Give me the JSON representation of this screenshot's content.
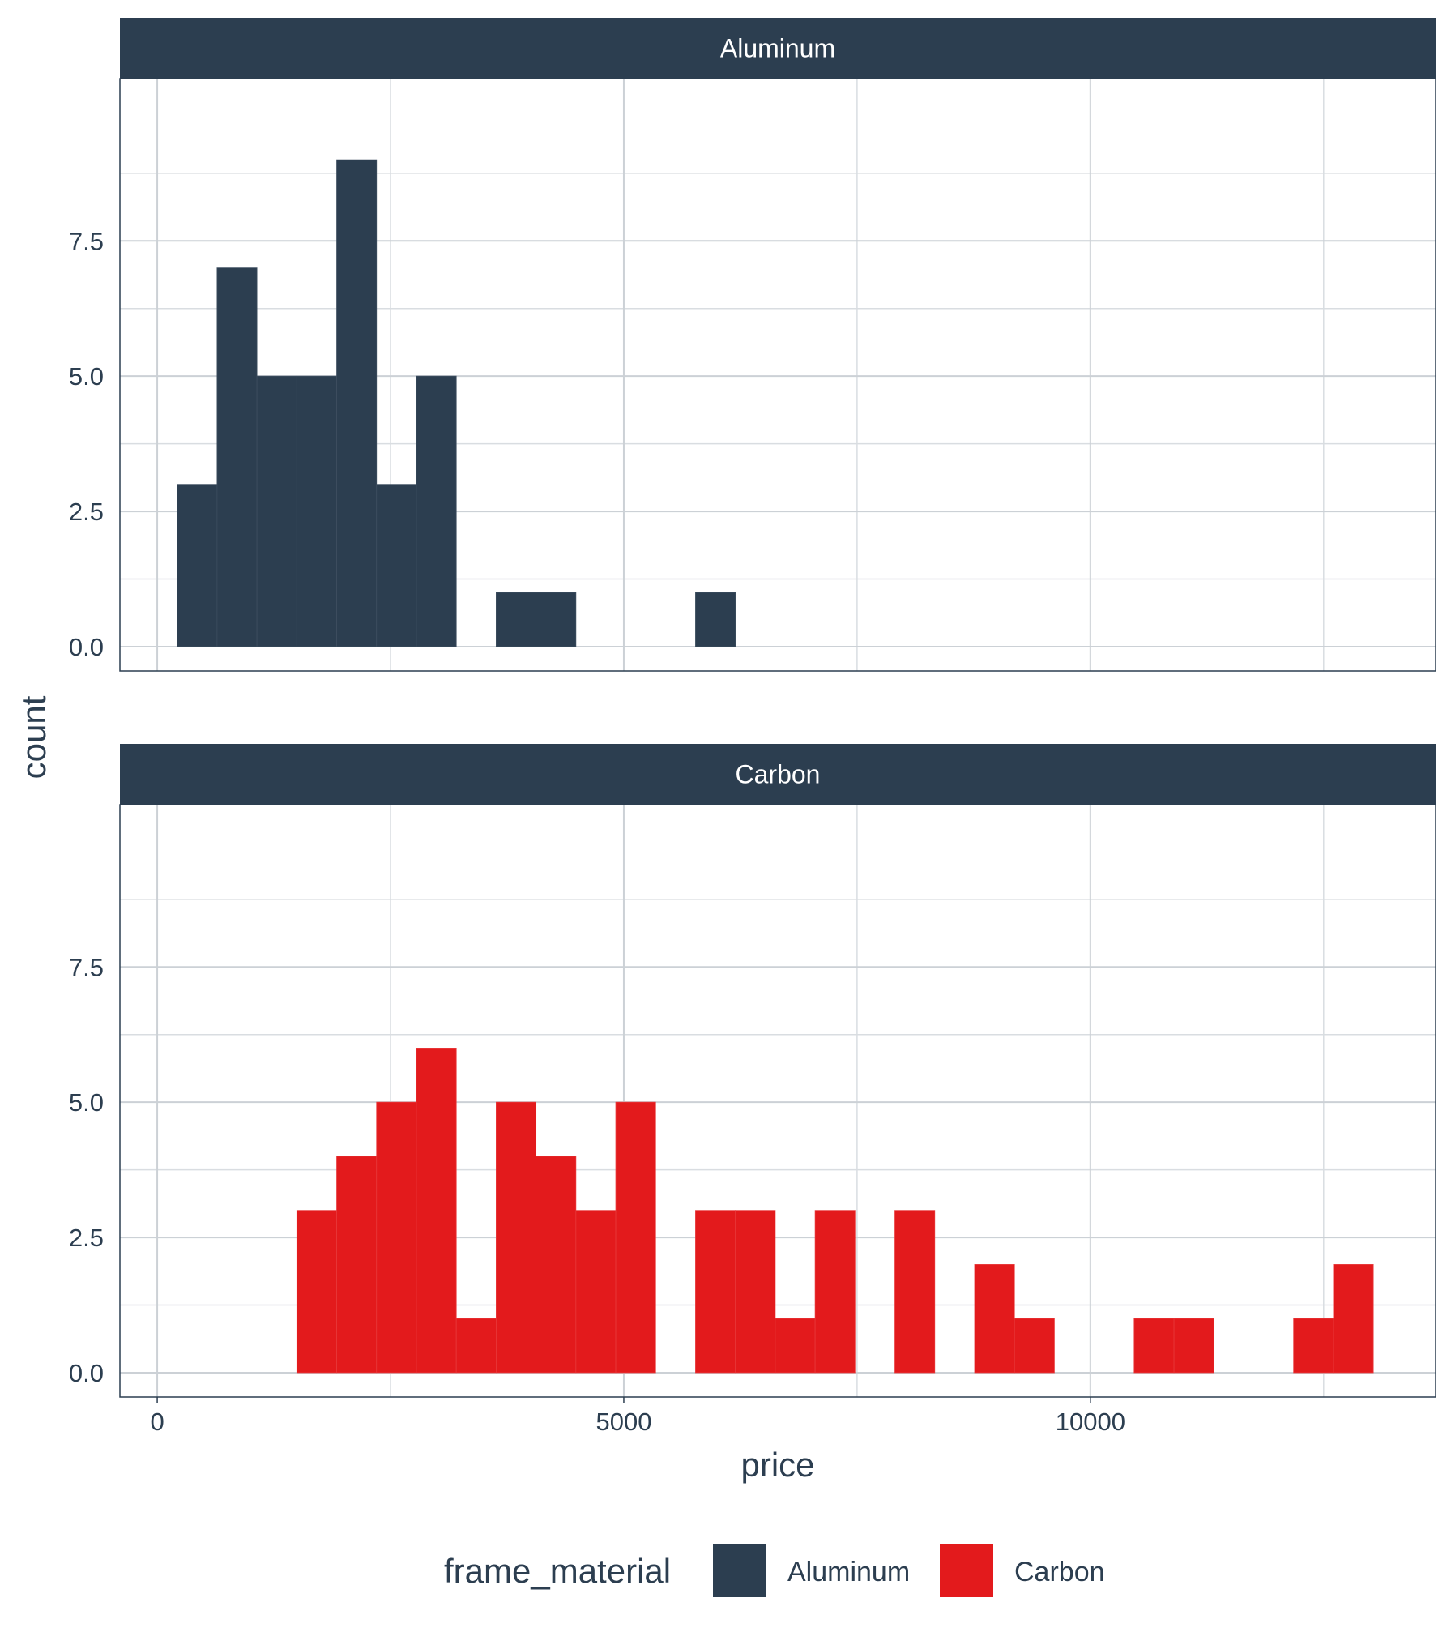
{
  "chart_data": {
    "type": "bar",
    "subtype": "faceted histogram",
    "xlabel": "price",
    "ylabel": "count",
    "xlim": [
      -400,
      13700
    ],
    "x_ticks": [
      0,
      5000,
      10000
    ],
    "x_tick_labels": [
      "0",
      "5000",
      "10000"
    ],
    "ylim": [
      -0.45,
      10.5
    ],
    "y_ticks": [
      0,
      2.5,
      5,
      7.5
    ],
    "y_tick_labels": [
      "0.0",
      "2.5",
      "5.0",
      "7.5"
    ],
    "bin_width": 427.3,
    "grid": true,
    "legend": {
      "title": "frame_material",
      "position": "bottom",
      "entries": [
        {
          "label": "Aluminum",
          "color": "#2C3E50"
        },
        {
          "label": "Carbon",
          "color": "#E31A1C"
        }
      ]
    },
    "facets": [
      {
        "label": "Aluminum",
        "color": "#2C3E50",
        "bins": [
          {
            "x_start": 213.65,
            "x_end": 640.95,
            "count": 3
          },
          {
            "x_start": 640.95,
            "x_end": 1068.25,
            "count": 7
          },
          {
            "x_start": 1068.25,
            "x_end": 1495.55,
            "count": 5
          },
          {
            "x_start": 1495.55,
            "x_end": 1922.85,
            "count": 5
          },
          {
            "x_start": 1922.85,
            "x_end": 2350.15,
            "count": 9
          },
          {
            "x_start": 2350.15,
            "x_end": 2777.45,
            "count": 3
          },
          {
            "x_start": 2777.45,
            "x_end": 3204.75,
            "count": 5
          },
          {
            "x_start": 3632.05,
            "x_end": 4059.35,
            "count": 1
          },
          {
            "x_start": 4059.35,
            "x_end": 4486.65,
            "count": 1
          },
          {
            "x_start": 5768.55,
            "x_end": 6195.85,
            "count": 1
          }
        ]
      },
      {
        "label": "Carbon",
        "color": "#E31A1C",
        "bins": [
          {
            "x_start": 1495.55,
            "x_end": 1922.85,
            "count": 3
          },
          {
            "x_start": 1922.85,
            "x_end": 2350.15,
            "count": 4
          },
          {
            "x_start": 2350.15,
            "x_end": 2777.45,
            "count": 5
          },
          {
            "x_start": 2777.45,
            "x_end": 3204.75,
            "count": 6
          },
          {
            "x_start": 3204.75,
            "x_end": 3632.05,
            "count": 1
          },
          {
            "x_start": 3632.05,
            "x_end": 4059.35,
            "count": 5
          },
          {
            "x_start": 4059.35,
            "x_end": 4486.65,
            "count": 4
          },
          {
            "x_start": 4486.65,
            "x_end": 4913.95,
            "count": 3
          },
          {
            "x_start": 4913.95,
            "x_end": 5341.25,
            "count": 5
          },
          {
            "x_start": 5768.55,
            "x_end": 6195.85,
            "count": 3
          },
          {
            "x_start": 6195.85,
            "x_end": 6623.15,
            "count": 3
          },
          {
            "x_start": 6623.15,
            "x_end": 7050.45,
            "count": 1
          },
          {
            "x_start": 7050.45,
            "x_end": 7477.75,
            "count": 3
          },
          {
            "x_start": 7905.05,
            "x_end": 8332.35,
            "count": 3
          },
          {
            "x_start": 8759.65,
            "x_end": 9186.95,
            "count": 2
          },
          {
            "x_start": 9186.95,
            "x_end": 9614.25,
            "count": 1
          },
          {
            "x_start": 10468.85,
            "x_end": 10896.15,
            "count": 1
          },
          {
            "x_start": 10896.15,
            "x_end": 11323.45,
            "count": 1
          },
          {
            "x_start": 12177.95,
            "x_end": 12605.25,
            "count": 1
          },
          {
            "x_start": 12605.25,
            "x_end": 13032.55,
            "count": 2
          }
        ]
      }
    ]
  }
}
